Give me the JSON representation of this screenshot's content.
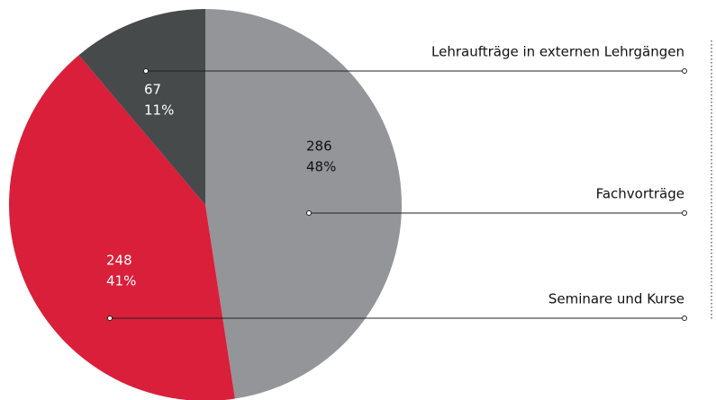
{
  "chart_data": {
    "type": "pie",
    "categories": [
      "Fachvorträge",
      "Seminare und Kurse",
      "Lehraufträge in externen Lehrgängen"
    ],
    "values": [
      286,
      248,
      67
    ],
    "percentage_labels": [
      "48%",
      "41%",
      "11%"
    ],
    "colors": [
      "#939598",
      "#d91f3a",
      "#474a4b"
    ]
  }
}
